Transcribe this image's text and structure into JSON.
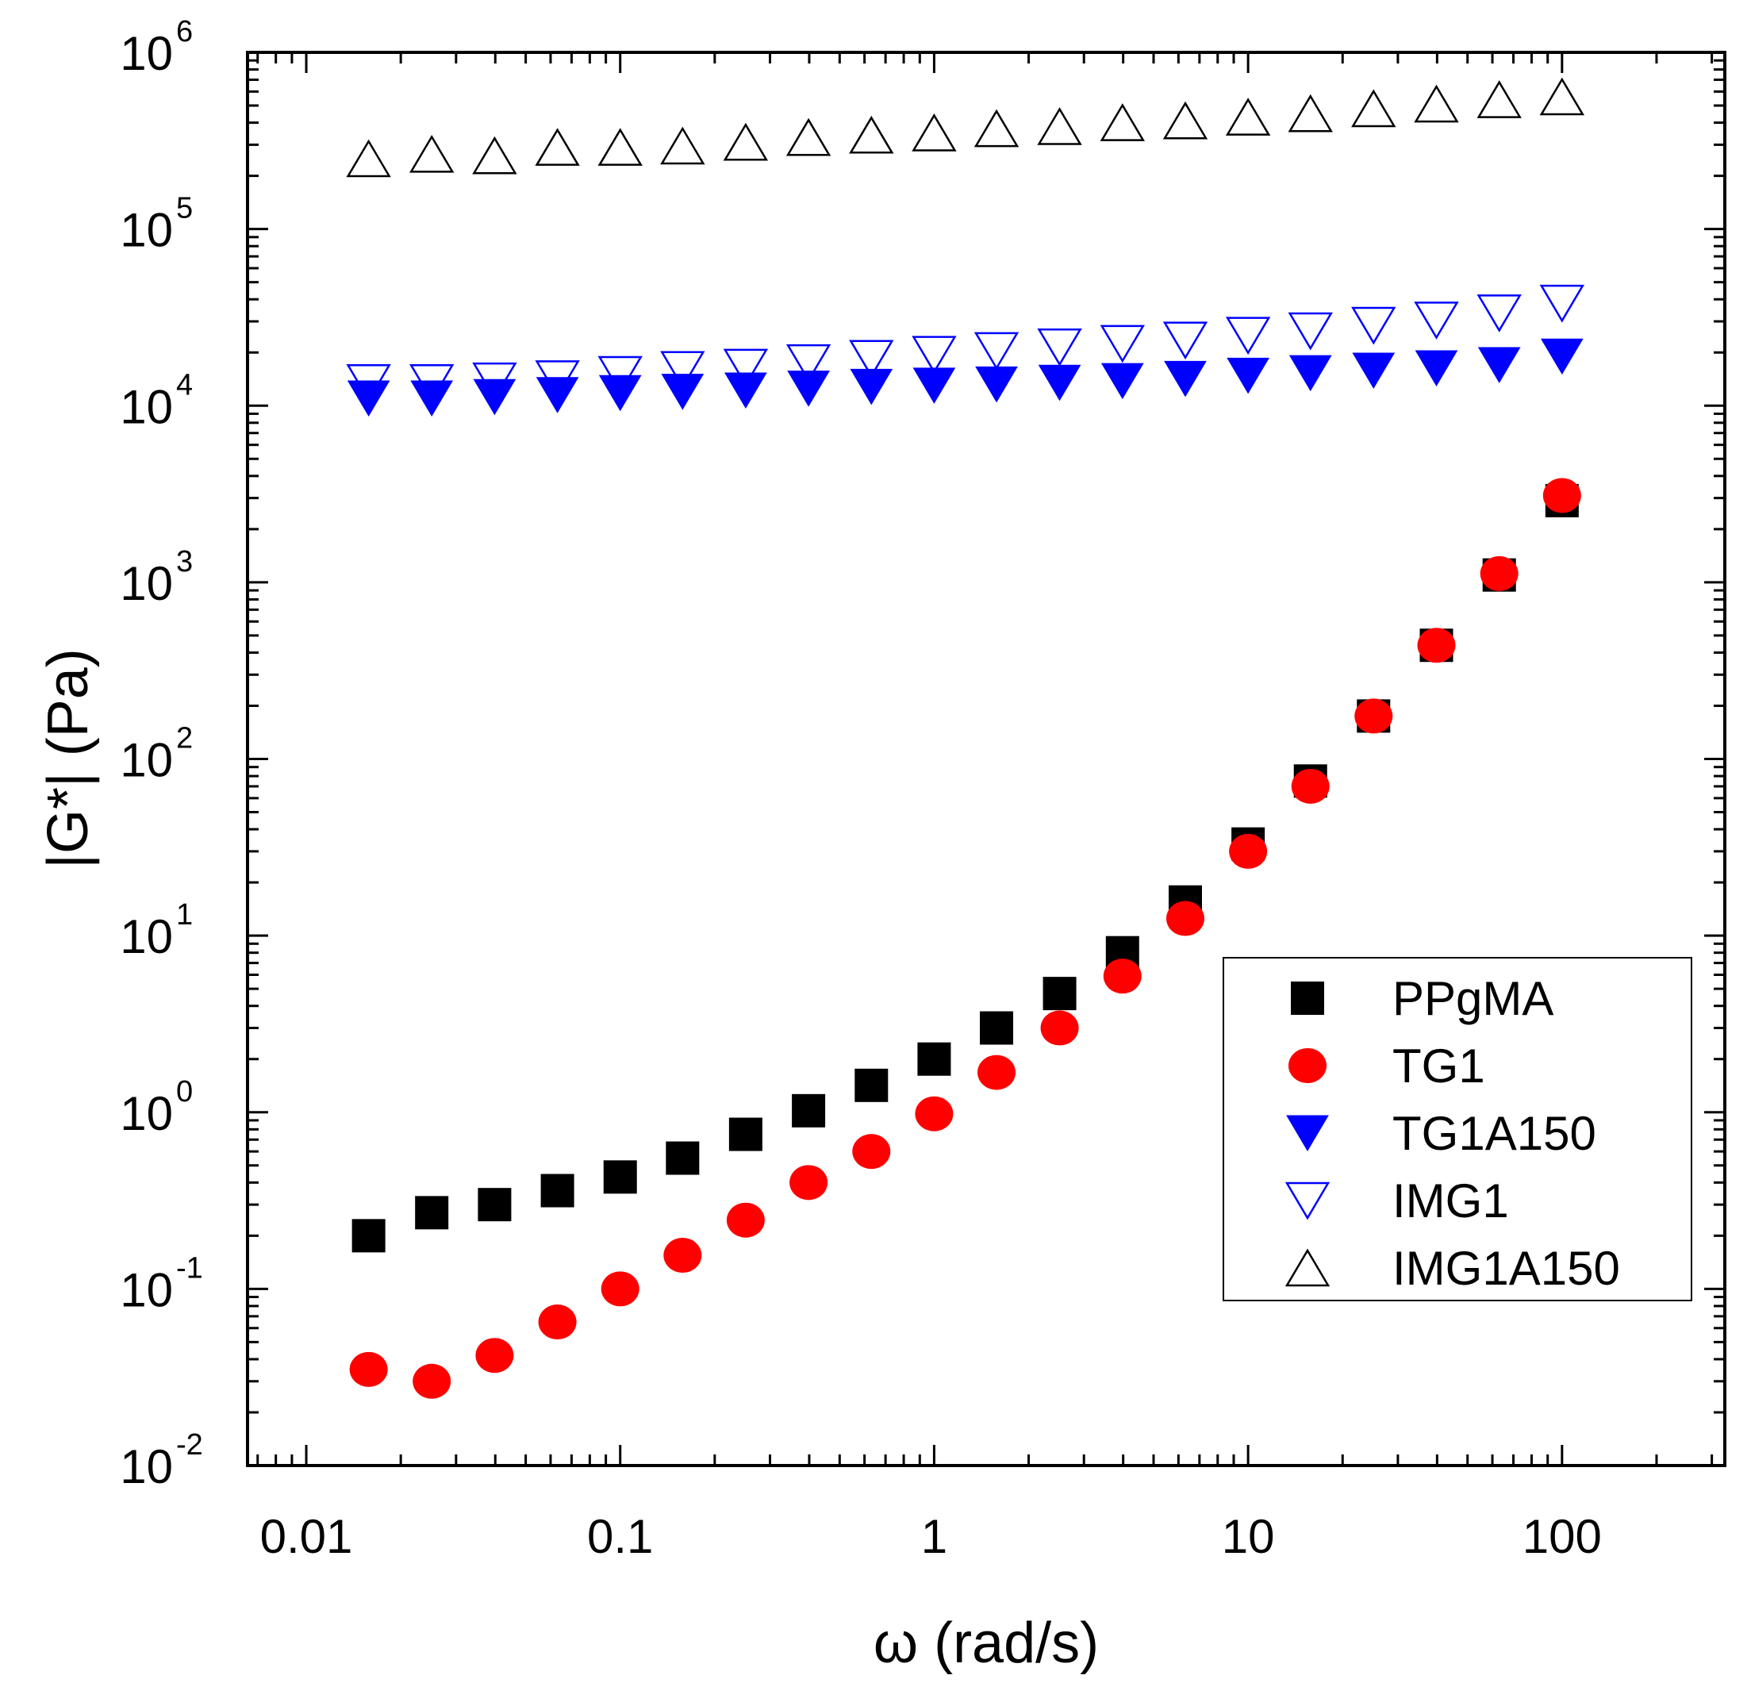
{
  "chart_data": {
    "type": "scatter",
    "title": "",
    "xlabel": "ω (rad/s)",
    "ylabel": "|G*| (Pa)",
    "x_scale": "log",
    "y_scale": "log",
    "xlim": [
      0.0065,
      330
    ],
    "ylim": [
      0.01,
      1000000
    ],
    "grid": false,
    "legend_position": "center-right",
    "x_ticks": [
      {
        "value": 0.01,
        "label": "0.01"
      },
      {
        "value": 0.1,
        "label": "0.1"
      },
      {
        "value": 1,
        "label": "1"
      },
      {
        "value": 10,
        "label": "10"
      },
      {
        "value": 100,
        "label": "100"
      }
    ],
    "y_ticks": [
      {
        "value": 0.01,
        "base": "10",
        "exp": "-2"
      },
      {
        "value": 0.1,
        "base": "10",
        "exp": "-1"
      },
      {
        "value": 1,
        "base": "10",
        "exp": "0"
      },
      {
        "value": 10,
        "base": "10",
        "exp": "1"
      },
      {
        "value": 100,
        "base": "10",
        "exp": "2"
      },
      {
        "value": 1000,
        "base": "10",
        "exp": "3"
      },
      {
        "value": 10000,
        "base": "10",
        "exp": "4"
      },
      {
        "value": 100000,
        "base": "10",
        "exp": "5"
      },
      {
        "value": 1000000,
        "base": "10",
        "exp": "6"
      }
    ],
    "x": [
      0.0158,
      0.0251,
      0.0398,
      0.0631,
      0.1,
      0.158,
      0.251,
      0.398,
      0.631,
      1,
      1.58,
      2.51,
      3.98,
      6.31,
      10,
      15.8,
      25.1,
      39.8,
      63.1,
      100
    ],
    "series": [
      {
        "name": "PPgMA",
        "marker": "square-filled",
        "color": "#000000",
        "values": [
          0.2,
          0.27,
          0.3,
          0.36,
          0.43,
          0.55,
          0.75,
          1.02,
          1.42,
          2.0,
          3.0,
          4.7,
          8.0,
          15.5,
          33,
          75,
          175,
          440,
          1100,
          2900
        ]
      },
      {
        "name": "TG1",
        "marker": "circle-filled",
        "color": "#ff0000",
        "values": [
          0.035,
          0.03,
          0.042,
          0.065,
          0.1,
          0.155,
          0.245,
          0.4,
          0.6,
          0.98,
          1.68,
          3.0,
          5.9,
          12.5,
          30,
          70,
          175,
          440,
          1120,
          3100
        ]
      },
      {
        "name": "TG1A150",
        "marker": "triangle-down-filled",
        "color": "#0000ff",
        "values": [
          11000,
          11000,
          11200,
          11500,
          11800,
          12000,
          12200,
          12500,
          12800,
          13000,
          13200,
          13500,
          13800,
          14200,
          14800,
          15300,
          15800,
          16300,
          17000,
          19000
        ]
      },
      {
        "name": "IMG1",
        "marker": "triangle-down-open",
        "color": "#0000ff",
        "values": [
          13500,
          13500,
          13800,
          14200,
          15000,
          16000,
          16500,
          17500,
          18500,
          19500,
          20500,
          21500,
          22500,
          23500,
          25000,
          26500,
          28500,
          30500,
          33500,
          38000
        ]
      },
      {
        "name": "IMG1A150",
        "marker": "triangle-up-open",
        "color": "#000000",
        "values": [
          250000,
          265000,
          260000,
          290000,
          290000,
          295000,
          310000,
          330000,
          340000,
          350000,
          370000,
          380000,
          400000,
          410000,
          430000,
          450000,
          480000,
          510000,
          540000,
          560000
        ]
      }
    ]
  }
}
